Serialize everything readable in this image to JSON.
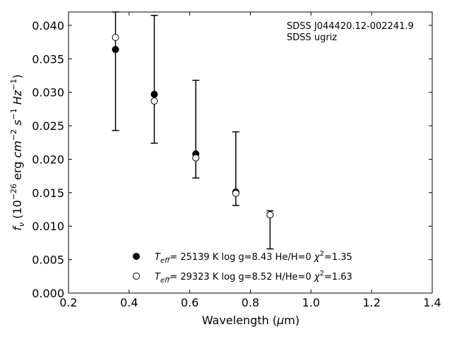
{
  "chart_data": {
    "type": "scatter",
    "title": "",
    "annotation": [
      "SDSS J044420.12-002241.9",
      "SDSS ugriz"
    ],
    "xlabel": "Wavelength (μm)",
    "ylabel": "f_ν (10^-26 erg cm^-2 s^-1 Hz^-1)",
    "xlim": [
      0.2,
      1.4
    ],
    "ylim": [
      0.0,
      0.042
    ],
    "xticks": [
      0.2,
      0.4,
      0.6,
      0.8,
      1.0,
      1.2,
      1.4
    ],
    "xtick_labels": [
      "0.2",
      "0.4",
      "0.6",
      "0.8",
      "1.0",
      "1.2",
      "1.4"
    ],
    "yticks": [
      0.0,
      0.005,
      0.01,
      0.015,
      0.02,
      0.025,
      0.03,
      0.035,
      0.04
    ],
    "ytick_labels": [
      "0.000",
      "0.005",
      "0.010",
      "0.015",
      "0.020",
      "0.025",
      "0.030",
      "0.035",
      "0.040"
    ],
    "grid": false,
    "legend_position": "bottom-center",
    "observed_errorbars": [
      {
        "x": 0.355,
        "low": 0.0243,
        "high": 0.042
      },
      {
        "x": 0.483,
        "low": 0.0224,
        "high": 0.0415
      },
      {
        "x": 0.62,
        "low": 0.0172,
        "high": 0.0318
      },
      {
        "x": 0.752,
        "low": 0.0131,
        "high": 0.0241
      },
      {
        "x": 0.865,
        "low": 0.0066,
        "high": 0.0123
      }
    ],
    "series": [
      {
        "name": "T_eff= 25139 K  log g=8.43  He/H=0  χ²=1.35",
        "marker": "filled-circle",
        "x": [
          0.355,
          0.483,
          0.62,
          0.752,
          0.865
        ],
        "y": [
          0.0364,
          0.0297,
          0.0208,
          0.0151,
          0.0117
        ]
      },
      {
        "name": "T_eff= 29323 K  log g=8.52  H/He=0  χ²=1.63",
        "marker": "open-circle",
        "x": [
          0.355,
          0.483,
          0.62,
          0.752,
          0.865
        ],
        "y": [
          0.0382,
          0.0287,
          0.0202,
          0.0149,
          0.0117
        ]
      }
    ],
    "colors": {
      "marker": "#000000",
      "open_fill": "#ffffff"
    }
  }
}
